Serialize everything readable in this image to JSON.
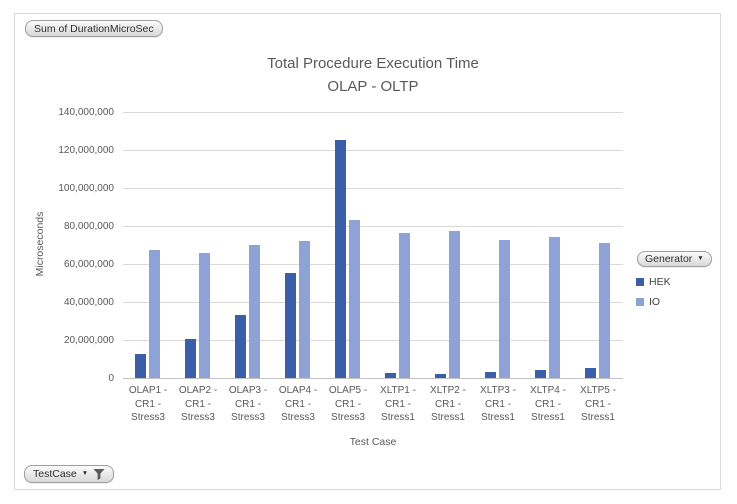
{
  "pivot_buttons": {
    "values_button": "Sum of DurationMicroSec",
    "legend_button": "Generator",
    "axis_button": "TestCase"
  },
  "icons": {
    "dropdown_arrow": "▼",
    "filter": "funnel-shape"
  },
  "chart_data": {
    "type": "bar",
    "title": "Total Procedure Execution Time",
    "subtitle": "OLAP - OLTP",
    "xlabel": "Test Case",
    "ylabel": "Microseconds",
    "ylim": [
      0,
      140000000
    ],
    "grid": true,
    "legend_position": "right",
    "gridline_color": "#D9D9D9",
    "axis_line_color": "#C2C2C2",
    "text_color": "#595959",
    "yticks": [
      0,
      20000000,
      40000000,
      60000000,
      80000000,
      100000000,
      120000000,
      140000000
    ],
    "ytick_labels": [
      "0",
      "20,000,000",
      "40,000,000",
      "60,000,000",
      "80,000,000",
      "100,000,000",
      "120,000,000",
      "140,000,000"
    ],
    "categories": [
      "OLAP1 - CR1 - Stress3",
      "OLAP2 - CR1 - Stress3",
      "OLAP3 - CR1 - Stress3",
      "OLAP4 - CR1 - Stress3",
      "OLAP5 - CR1 - Stress3",
      "XLTP1 - CR1 - Stress1",
      "XLTP2 - CR1 - Stress1",
      "XLTP3 - CR1 - Stress1",
      "XLTP4 - CR1 - Stress1",
      "XLTP5 - CR1 - Stress1"
    ],
    "series": [
      {
        "name": "HEK",
        "color": "#3B5EA9",
        "values": [
          12500000,
          20500000,
          33000000,
          55500000,
          125500000,
          2500000,
          2300000,
          3000000,
          4000000,
          5500000
        ]
      },
      {
        "name": "IO",
        "color": "#8EA2D6",
        "values": [
          67500000,
          66000000,
          70000000,
          72000000,
          83000000,
          76500000,
          77500000,
          72500000,
          74000000,
          71000000
        ]
      }
    ]
  }
}
